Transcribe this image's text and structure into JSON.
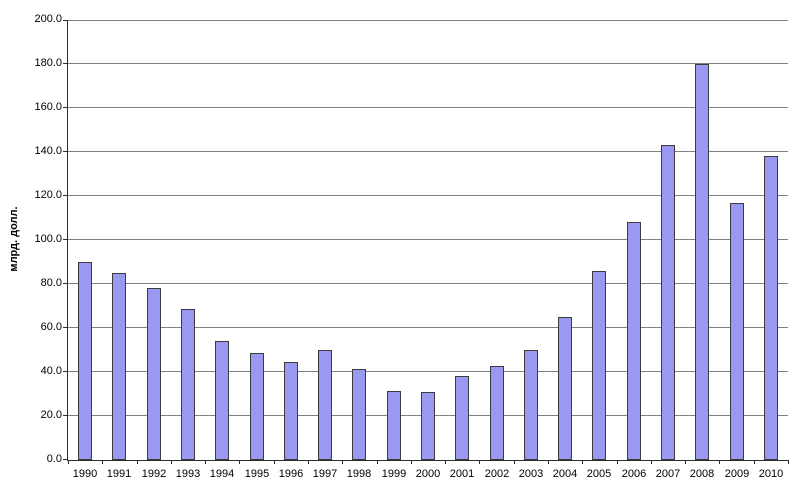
{
  "chart_data": {
    "type": "bar",
    "title": "",
    "xlabel": "",
    "ylabel": "млрд. долл.",
    "categories": [
      "1990",
      "1991",
      "1992",
      "1993",
      "1994",
      "1995",
      "1996",
      "1997",
      "1998",
      "1999",
      "2000",
      "2001",
      "2002",
      "2003",
      "2004",
      "2005",
      "2006",
      "2007",
      "2008",
      "2009",
      "2010"
    ],
    "values": [
      90,
      85,
      78,
      68.5,
      54,
      48.5,
      44.5,
      50,
      41.5,
      31.5,
      31,
      38,
      42.5,
      50,
      65,
      86,
      108,
      143,
      180,
      117,
      138
    ],
    "ylim": [
      0,
      200
    ],
    "ytick_step": 20,
    "ytick_decimals": 1,
    "grid": true,
    "legend": "none",
    "colors": {
      "bar_fill": "#9999F2",
      "bar_border": "#3c3c3c",
      "gridline": "#808080",
      "axis": "#2b2b2b",
      "background": "#ffffff",
      "text": "#000000"
    }
  }
}
